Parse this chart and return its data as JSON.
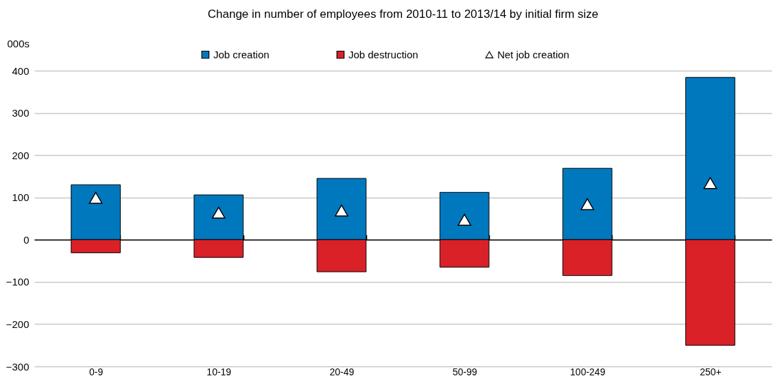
{
  "chart_data": {
    "type": "bar",
    "title": "Change in number of employees from 2010-11 to 2013/14 by initial firm size",
    "ylabel": "000s",
    "categories": [
      "0-9",
      "10-19",
      "20-49",
      "50-99",
      "100-249",
      "250+"
    ],
    "stacked": true,
    "series": [
      {
        "name": "Job creation",
        "color": "#0078be",
        "values": [
          130,
          106,
          145,
          112,
          169,
          384
        ]
      },
      {
        "name": "Job destruction",
        "color": "#da2128",
        "values": [
          -31,
          -42,
          -76,
          -65,
          -85,
          -250
        ]
      },
      {
        "name": "Net job creation",
        "type": "scatter",
        "marker": "triangle",
        "color": "#ffffff",
        "x": [
          "0-9",
          "10-19",
          "20-49",
          "50-99",
          "100-249",
          "250+"
        ],
        "values": [
          99,
          64,
          69,
          47,
          84,
          134
        ]
      }
    ],
    "ylim": [
      -300,
      400
    ],
    "yticks": [
      -300,
      -200,
      -100,
      0,
      100,
      200,
      300,
      400
    ],
    "grid": "y",
    "legend": "top"
  }
}
